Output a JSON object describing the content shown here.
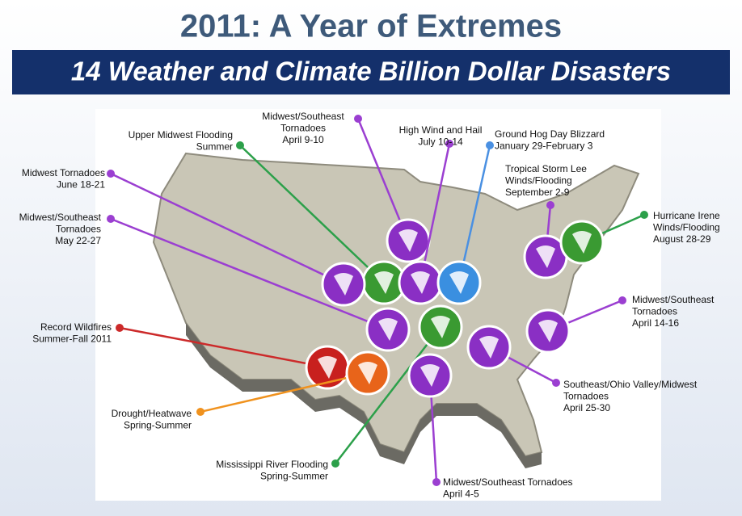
{
  "title": "2011: A Year of Extremes",
  "subtitle": "14 Weather and Climate Billion Dollar Disasters",
  "events": [
    {
      "lines": [
        "Midwest/Southeast",
        "Tornadoes",
        "April 9-10"
      ]
    },
    {
      "lines": [
        "Upper Midwest Flooding",
        "Summer"
      ]
    },
    {
      "lines": [
        "High Wind and Hail",
        "July 10-14"
      ]
    },
    {
      "lines": [
        "Ground Hog Day Blizzard",
        "January 29-February 3"
      ]
    },
    {
      "lines": [
        "Tropical Storm Lee",
        "Winds/Flooding",
        "September 2-9"
      ]
    },
    {
      "lines": [
        "Hurricane Irene",
        "Winds/Flooding",
        "August 28-29"
      ]
    },
    {
      "lines": [
        "Midwest Tornadoes",
        "June 18-21"
      ]
    },
    {
      "lines": [
        "Midwest/Southeast",
        "Tornadoes",
        "May 22-27"
      ]
    },
    {
      "lines": [
        "Midwest/Southeast",
        "Tornadoes",
        "April 14-16"
      ]
    },
    {
      "lines": [
        "Record Wildfires",
        "Summer-Fall 2011"
      ]
    },
    {
      "lines": [
        "Southeast/Ohio Valley/Midwest",
        "Tornadoes",
        "April 25-30"
      ]
    },
    {
      "lines": [
        "Drought/Heatwave",
        "Spring-Summer"
      ]
    },
    {
      "lines": [
        "Mississippi River Flooding",
        "Spring-Summer"
      ]
    },
    {
      "lines": [
        "Midwest/Southeast Tornadoes",
        "April 4-5"
      ]
    }
  ]
}
